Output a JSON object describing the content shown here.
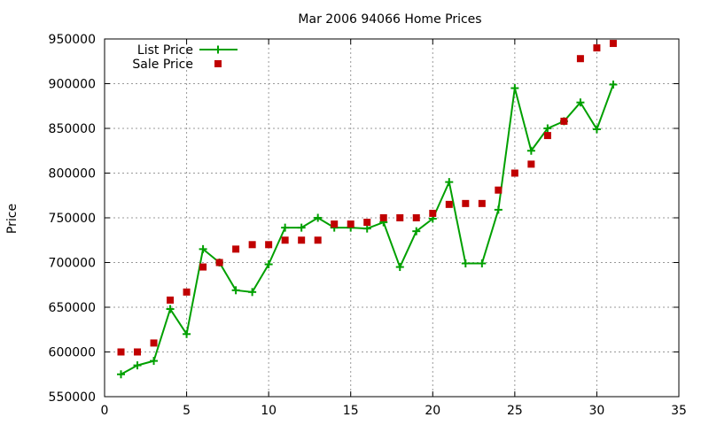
{
  "chart_data": {
    "type": "line",
    "title": "Mar 2006 94066 Home Prices",
    "xlabel": "",
    "ylabel": "Price",
    "xlim": [
      0,
      35
    ],
    "ylim": [
      550000,
      950000
    ],
    "xticks": [
      0,
      5,
      10,
      15,
      20,
      25,
      30,
      35
    ],
    "yticks": [
      550000,
      600000,
      650000,
      700000,
      750000,
      800000,
      850000,
      900000,
      950000
    ],
    "grid": true,
    "legend_position": "top-left",
    "series": [
      {
        "name": "List Price",
        "style": "line-with-plus-markers",
        "color": "#00a000",
        "x": [
          1,
          2,
          3,
          4,
          5,
          6,
          7,
          8,
          9,
          10,
          11,
          12,
          13,
          14,
          15,
          16,
          17,
          18,
          19,
          20,
          21,
          22,
          23,
          24,
          25,
          26,
          27,
          28,
          29,
          30,
          31
        ],
        "values": [
          575000,
          585000,
          590000,
          648000,
          620000,
          715000,
          700000,
          669000,
          667000,
          698000,
          739000,
          739000,
          750000,
          739000,
          739000,
          738000,
          745000,
          695000,
          735000,
          749000,
          790000,
          699000,
          699000,
          759000,
          895000,
          825000,
          850000,
          858000,
          879000,
          849000,
          899000
        ]
      },
      {
        "name": "Sale Price",
        "style": "square-markers",
        "color": "#c00000",
        "x": [
          1,
          2,
          3,
          4,
          5,
          6,
          7,
          8,
          9,
          10,
          11,
          12,
          13,
          14,
          15,
          16,
          17,
          18,
          19,
          20,
          21,
          22,
          23,
          24,
          25,
          26,
          27,
          28,
          29,
          30,
          31
        ],
        "values": [
          600000,
          600000,
          610000,
          658000,
          667000,
          695000,
          700000,
          715000,
          720000,
          720000,
          725000,
          725000,
          725000,
          743000,
          743000,
          745000,
          750000,
          750000,
          750000,
          755000,
          765000,
          766000,
          766000,
          781000,
          800000,
          810000,
          842000,
          858000,
          928000,
          940000,
          945000
        ]
      }
    ]
  }
}
